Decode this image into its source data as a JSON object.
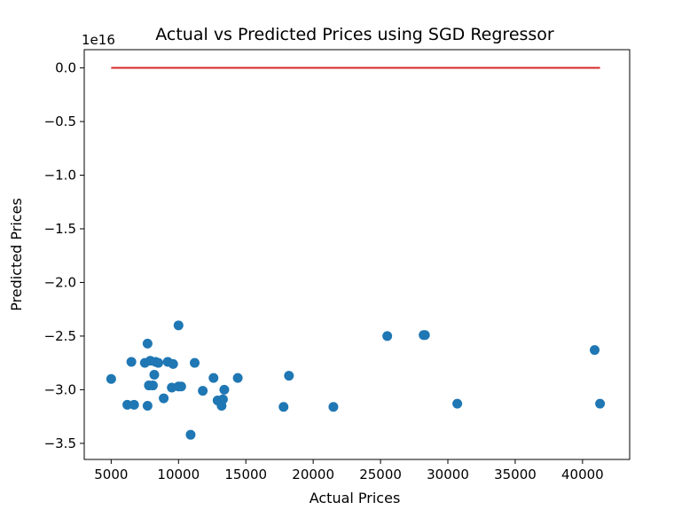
{
  "chart_data": {
    "type": "scatter",
    "title": "Actual vs Predicted Prices using SGD Regressor",
    "xlabel": "Actual Prices",
    "ylabel": "Predicted Prices",
    "y_offset_label": "1e16",
    "xlim": [
      3000,
      43500
    ],
    "ylim": [
      -3.65,
      0.17
    ],
    "x_ticks": [
      5000,
      10000,
      15000,
      20000,
      25000,
      30000,
      35000,
      40000
    ],
    "x_tick_labels": [
      "5000",
      "10000",
      "15000",
      "20000",
      "25000",
      "30000",
      "35000",
      "40000"
    ],
    "y_ticks": [
      0.0,
      -0.5,
      -1.0,
      -1.5,
      -2.0,
      -2.5,
      -3.0,
      -3.5
    ],
    "y_tick_labels": [
      "0.0",
      "−0.5",
      "−1.0",
      "−1.5",
      "−2.0",
      "−2.5",
      "−3.0",
      "−3.5"
    ],
    "grid": false,
    "colors": {
      "points": "#1f77b4",
      "line": "#d62728"
    },
    "ideal_line": {
      "x": [
        5000,
        41300
      ],
      "y": [
        0.0,
        0.0
      ]
    },
    "points": [
      {
        "x": 5000,
        "y": -2.9
      },
      {
        "x": 6200,
        "y": -3.14
      },
      {
        "x": 6500,
        "y": -2.74
      },
      {
        "x": 6700,
        "y": -3.14
      },
      {
        "x": 7500,
        "y": -2.75
      },
      {
        "x": 7700,
        "y": -2.57
      },
      {
        "x": 7800,
        "y": -2.96
      },
      {
        "x": 7700,
        "y": -3.15
      },
      {
        "x": 7900,
        "y": -2.73
      },
      {
        "x": 8100,
        "y": -2.96
      },
      {
        "x": 8200,
        "y": -2.86
      },
      {
        "x": 8300,
        "y": -2.74
      },
      {
        "x": 8500,
        "y": -2.75
      },
      {
        "x": 8900,
        "y": -3.08
      },
      {
        "x": 9200,
        "y": -2.74
      },
      {
        "x": 9500,
        "y": -2.98
      },
      {
        "x": 9600,
        "y": -2.76
      },
      {
        "x": 10000,
        "y": -2.4
      },
      {
        "x": 10000,
        "y": -2.97
      },
      {
        "x": 10200,
        "y": -2.97
      },
      {
        "x": 10900,
        "y": -3.42
      },
      {
        "x": 11200,
        "y": -2.75
      },
      {
        "x": 11800,
        "y": -3.01
      },
      {
        "x": 12600,
        "y": -2.89
      },
      {
        "x": 12900,
        "y": -3.1
      },
      {
        "x": 13200,
        "y": -3.15
      },
      {
        "x": 13400,
        "y": -3.0
      },
      {
        "x": 13300,
        "y": -3.09
      },
      {
        "x": 14400,
        "y": -2.89
      },
      {
        "x": 17800,
        "y": -3.16
      },
      {
        "x": 18200,
        "y": -2.87
      },
      {
        "x": 21500,
        "y": -3.16
      },
      {
        "x": 25500,
        "y": -2.5
      },
      {
        "x": 28200,
        "y": -2.49
      },
      {
        "x": 28300,
        "y": -2.49
      },
      {
        "x": 30700,
        "y": -3.13
      },
      {
        "x": 40900,
        "y": -2.63
      },
      {
        "x": 41300,
        "y": -3.13
      }
    ]
  }
}
